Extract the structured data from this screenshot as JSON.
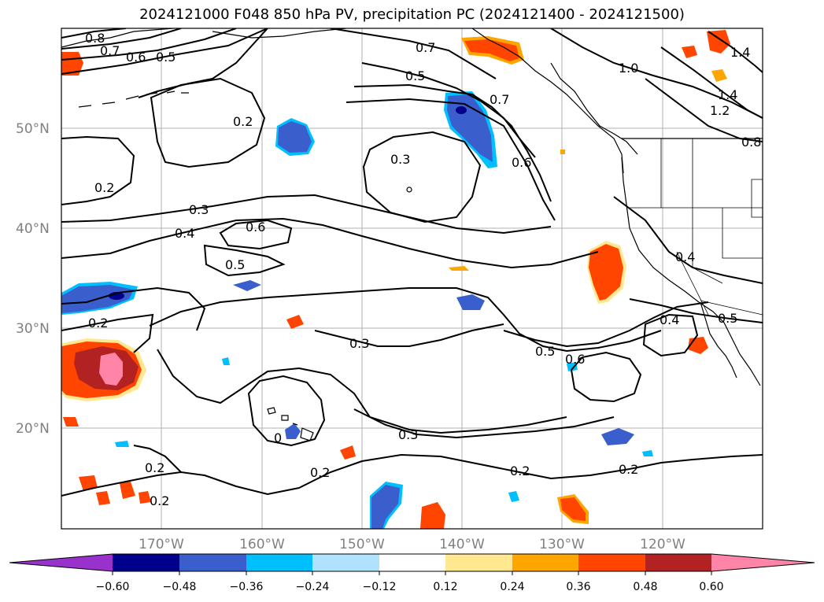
{
  "title": "2024121000 F048 850 hPa PV, precipitation PC (2024121400 - 2024121500)",
  "lat_labels": [
    "50°N",
    "40°N",
    "30°N",
    "20°N"
  ],
  "lon_labels": [
    "170°W",
    "160°W",
    "150°W",
    "140°W",
    "130°W",
    "120°W"
  ],
  "contour_labels": {
    "c08a": "0.8",
    "c07a": "0.7",
    "c06a": "0.6",
    "c05a": "0.5",
    "c07b": "0.7",
    "c05b": "0.5",
    "c07c": "0.7",
    "c06c": "0.6",
    "c10": "1.0",
    "c14a": "1.4",
    "c14b": "1.4",
    "c12": "1.2",
    "c08e": "0.8",
    "c02a": "0.2",
    "c03a": "0.3",
    "c02b": "0.2",
    "c03b": "0.3",
    "c04a": "0.4",
    "c06d": "0.6",
    "c05d": "0.5",
    "c02c": "0.2",
    "c03c": "0.3",
    "c05e": "0.5",
    "c06e": "0.6",
    "c04b": "0.4",
    "c04c": "0.4",
    "c05f": "0.5",
    "c02d": "0.2",
    "c02e": "0.2",
    "c03d": "0.3",
    "c02f": "0.2",
    "c02g": "0.2",
    "c0x": "0"
  },
  "colorbar": {
    "ticks": [
      "−0.60",
      "−0.48",
      "−0.36",
      "−0.24",
      "−0.12",
      "0.12",
      "0.24",
      "0.36",
      "0.48",
      "0.60"
    ],
    "colors": [
      "#9932cc",
      "#00008b",
      "#3a5fcd",
      "#00bfff",
      "#b0e2ff",
      "#ffffff",
      "#ffe88f",
      "#ffa500",
      "#ff4500",
      "#b22222",
      "#ff85a8"
    ]
  },
  "colors": {
    "neg_strong": "#3a5fcd",
    "neg_weak": "#00bfff",
    "neg_darkest": "#00008b",
    "pos_weak": "#ffe88f",
    "pos_mid": "#ffa500",
    "pos_strong": "#ff4500",
    "pos_stronger": "#b22222",
    "pos_max": "#ff85a8"
  }
}
